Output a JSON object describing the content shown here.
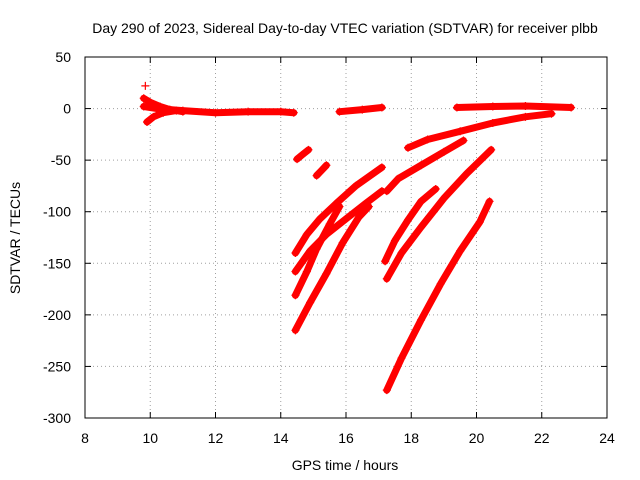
{
  "chart_data": {
    "type": "scatter",
    "title": "Day 290 of 2023, Sidereal Day-to-day VTEC variation (SDTVAR) for receiver plbb",
    "xlabel": "GPS time / hours",
    "ylabel": "SDTVAR / TECUs",
    "xlim": [
      8,
      24
    ],
    "ylim": [
      -300,
      50
    ],
    "xticks": [
      8,
      10,
      12,
      14,
      16,
      18,
      20,
      22,
      24
    ],
    "yticks": [
      50,
      0,
      -50,
      -100,
      -150,
      -200,
      -250,
      -300
    ],
    "xtick_labels": [
      "8",
      "10",
      "12",
      "14",
      "16",
      "18",
      "20",
      "22",
      "24"
    ],
    "ytick_labels": [
      "50",
      "0",
      "-50",
      "-100",
      "-150",
      "-200",
      "-250",
      "-300"
    ],
    "grid": true,
    "legend": "none",
    "color": "#ff0000",
    "series": [
      {
        "points": [
          [
            9.8,
            2
          ],
          [
            10.2,
            0
          ],
          [
            11,
            -2
          ],
          [
            12,
            -4
          ],
          [
            13,
            -3
          ],
          [
            14,
            -3
          ],
          [
            14.4,
            -4
          ]
        ]
      },
      {
        "points": [
          [
            9.8,
            10
          ],
          [
            10.0,
            6
          ],
          [
            10.3,
            2
          ],
          [
            10.6,
            -1
          ],
          [
            11,
            -3
          ]
        ]
      },
      {
        "points": [
          [
            9.9,
            -13
          ],
          [
            10.1,
            -8
          ],
          [
            10.4,
            -4
          ],
          [
            10.8,
            -2
          ]
        ]
      },
      {
        "points": [
          [
            9.85,
            22
          ]
        ]
      },
      {
        "points": [
          [
            15.8,
            -3
          ],
          [
            16.5,
            -1
          ],
          [
            17.1,
            1
          ]
        ]
      },
      {
        "points": [
          [
            19.4,
            1
          ],
          [
            20.5,
            2
          ],
          [
            21.5,
            2.5
          ],
          [
            22.9,
            1
          ]
        ]
      },
      {
        "points": [
          [
            14.5,
            -49
          ],
          [
            14.65,
            -45
          ],
          [
            14.85,
            -40
          ]
        ]
      },
      {
        "points": [
          [
            15.1,
            -65
          ],
          [
            15.25,
            -60
          ],
          [
            15.4,
            -55
          ]
        ]
      },
      {
        "points": [
          [
            14.45,
            -140
          ],
          [
            14.8,
            -122
          ],
          [
            15.2,
            -107
          ],
          [
            15.7,
            -92
          ],
          [
            16.3,
            -75
          ],
          [
            17.1,
            -57
          ]
        ]
      },
      {
        "points": [
          [
            14.45,
            -158
          ],
          [
            14.9,
            -138
          ],
          [
            15.4,
            -122
          ],
          [
            16.0,
            -107
          ],
          [
            16.6,
            -92
          ],
          [
            17.1,
            -80
          ]
        ]
      },
      {
        "points": [
          [
            14.45,
            -181
          ],
          [
            14.8,
            -158
          ],
          [
            15.1,
            -136
          ],
          [
            15.5,
            -112
          ],
          [
            15.8,
            -95
          ]
        ]
      },
      {
        "points": [
          [
            14.45,
            -215
          ],
          [
            14.9,
            -188
          ],
          [
            15.4,
            -160
          ],
          [
            15.9,
            -130
          ],
          [
            16.4,
            -105
          ],
          [
            16.7,
            -95
          ]
        ]
      },
      {
        "points": [
          [
            17.25,
            -80
          ],
          [
            17.6,
            -68
          ],
          [
            18.3,
            -55
          ],
          [
            19.0,
            -42
          ],
          [
            19.6,
            -31
          ]
        ]
      },
      {
        "points": [
          [
            17.9,
            -38
          ],
          [
            18.5,
            -30
          ],
          [
            19.5,
            -22
          ],
          [
            20.5,
            -14
          ],
          [
            21.5,
            -8
          ],
          [
            22.3,
            -5
          ]
        ]
      },
      {
        "points": [
          [
            17.2,
            -148
          ],
          [
            17.5,
            -128
          ],
          [
            17.9,
            -108
          ],
          [
            18.3,
            -90
          ],
          [
            18.75,
            -78
          ]
        ]
      },
      {
        "points": [
          [
            17.25,
            -165
          ],
          [
            17.7,
            -140
          ],
          [
            18.3,
            -115
          ],
          [
            19.0,
            -87
          ],
          [
            19.7,
            -63
          ],
          [
            20.45,
            -40
          ]
        ]
      },
      {
        "points": [
          [
            17.25,
            -273
          ],
          [
            17.7,
            -242
          ],
          [
            18.3,
            -205
          ],
          [
            18.9,
            -170
          ],
          [
            19.5,
            -138
          ],
          [
            20.1,
            -110
          ],
          [
            20.4,
            -90
          ]
        ]
      }
    ]
  }
}
